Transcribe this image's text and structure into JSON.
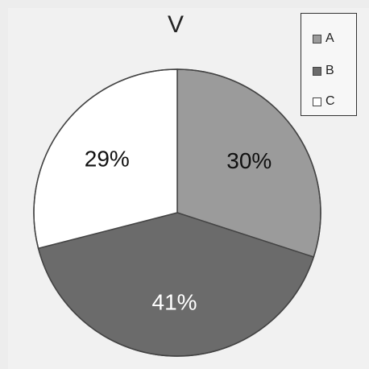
{
  "chart_data": {
    "type": "pie",
    "title": "V",
    "categories": [
      "A",
      "B",
      "C"
    ],
    "values": [
      30,
      41,
      29
    ],
    "data_labels": [
      "30%",
      "41%",
      "29%"
    ],
    "colors": [
      "#9b9b9b",
      "#6b6b6b",
      "#ffffff"
    ],
    "legend_position": "top-right",
    "legend": [
      {
        "label": "A",
        "color": "#9b9b9b"
      },
      {
        "label": "B",
        "color": "#6b6b6b"
      },
      {
        "label": "C",
        "color": "#ffffff"
      }
    ]
  }
}
